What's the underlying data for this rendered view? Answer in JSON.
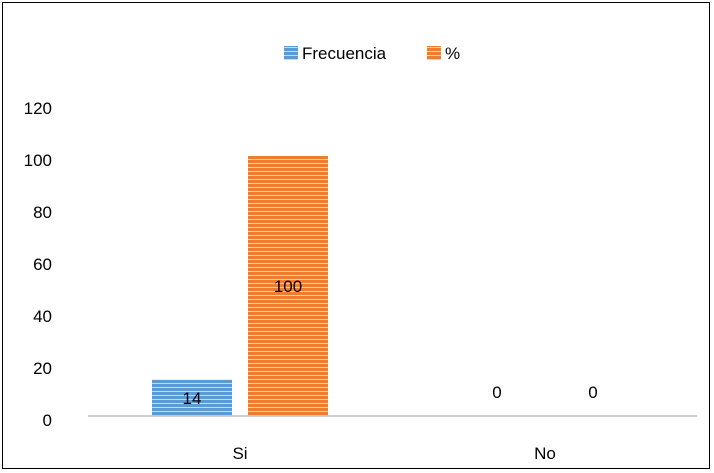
{
  "chart_data": {
    "type": "bar",
    "categories": [
      "Si",
      "No"
    ],
    "series": [
      {
        "name": "Frecuencia",
        "values": [
          14,
          0
        ],
        "color": "#5b9bd5"
      },
      {
        "name": "%",
        "values": [
          100,
          0
        ],
        "color": "#ed7d31"
      }
    ],
    "ylim": [
      0,
      120
    ],
    "yticks": [
      "0",
      "20",
      "40",
      "60",
      "80",
      "100",
      "120"
    ],
    "data_labels": [
      [
        "14",
        "0"
      ],
      [
        "100",
        "0"
      ]
    ],
    "legend_position": "top",
    "grid": false,
    "bar_pattern": "horizontal-stripes"
  }
}
